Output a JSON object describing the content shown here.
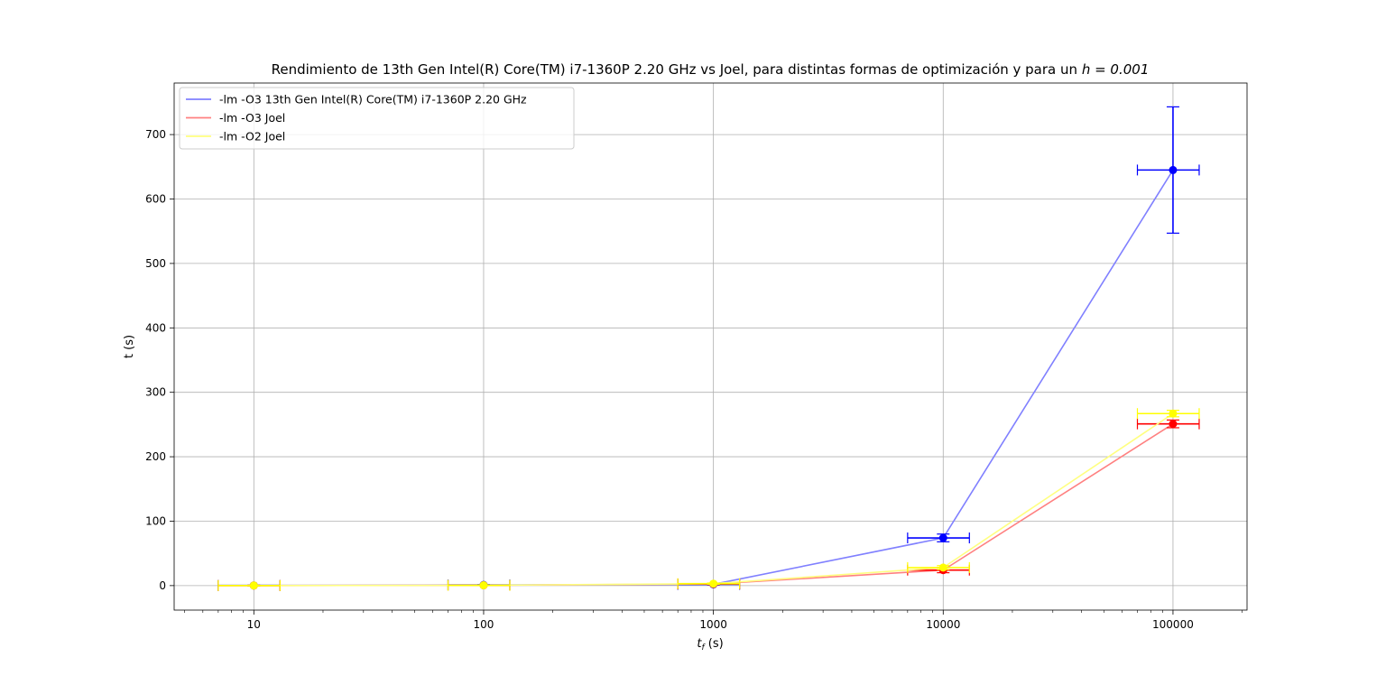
{
  "chart_data": {
    "type": "line",
    "title": "Rendimiento de 13th Gen Intel(R) Core(TM) i7-1360P 2.20 GHz vs Joel, para distintas formas de optimización y para un",
    "title_math": "h = 0.001",
    "xlabel_main": "t",
    "xlabel_sub": "f",
    "xlabel_unit": " (s)",
    "ylabel": "t (s)",
    "x_scale": "log",
    "xlim": [
      4.5,
      210000
    ],
    "ylim": [
      -38,
      780
    ],
    "x_ticks": [
      10,
      100,
      1000,
      10000,
      100000
    ],
    "x_tick_labels": [
      "10",
      "100",
      "1000",
      "10000",
      "100000"
    ],
    "y_ticks": [
      0,
      100,
      200,
      300,
      400,
      500,
      600,
      700
    ],
    "y_tick_labels": [
      "0",
      "100",
      "200",
      "300",
      "400",
      "500",
      "600",
      "700"
    ],
    "grid": true,
    "legend_position": "top-left",
    "x": [
      10,
      100,
      1000,
      10000,
      100000
    ],
    "x_error": [
      3,
      30,
      300,
      3000,
      30000
    ],
    "series": [
      {
        "name": "-lm -O3 13th Gen Intel(R) Core(TM) i7-1360P 2.20 GHz",
        "line_color": "#8080ff",
        "marker_color": "#0000ff",
        "values": [
          0.2,
          1,
          2,
          74,
          645
        ],
        "y_error": [
          0.5,
          0.5,
          1,
          6,
          98
        ]
      },
      {
        "name": "-lm -O3 Joel",
        "line_color": "#ff8080",
        "marker_color": "#ff0000",
        "values": [
          0.1,
          0.5,
          2.5,
          24,
          251
        ],
        "y_error": [
          0.5,
          0.5,
          1,
          4,
          6
        ]
      },
      {
        "name": "-lm -O2 Joel",
        "line_color": "#ffff80",
        "marker_color": "#ffff00",
        "values": [
          0.1,
          0.5,
          3,
          28,
          267
        ],
        "y_error": [
          0.5,
          0.5,
          1,
          3,
          5
        ]
      }
    ]
  }
}
